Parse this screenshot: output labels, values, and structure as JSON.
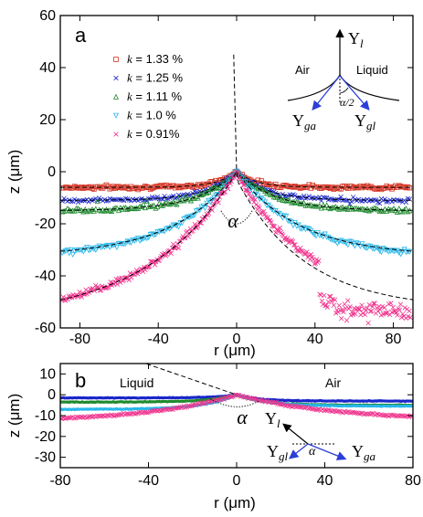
{
  "chart_data": [
    {
      "panel": "a",
      "type": "scatter",
      "xlabel": "r (μm)",
      "ylabel": "z (μm)",
      "xlim": [
        -90,
        90
      ],
      "ylim": [
        -60,
        60
      ],
      "xticks": [
        -80,
        -40,
        0,
        40,
        80
      ],
      "yticks": [
        -60,
        -40,
        -20,
        0,
        20,
        40,
        60
      ],
      "grid": false,
      "legend": "top-left",
      "series": [
        {
          "name": "k = 1.33 %",
          "color": "#d32f1f",
          "marker": "square",
          "depth": 6,
          "width": 10,
          "rising": 0,
          "x": [
            -88,
            -70,
            -50,
            -30,
            -15,
            -8,
            -3,
            0,
            3,
            8,
            15,
            30,
            50,
            70,
            88
          ],
          "y": [
            -6,
            -6,
            -6,
            -5.8,
            -5.5,
            -4.5,
            -2.5,
            0,
            -2.5,
            -4.5,
            -5.5,
            -5.8,
            -6,
            -6,
            -6
          ]
        },
        {
          "name": "k = 1.25 %",
          "color": "#1b27c9",
          "marker": "x",
          "depth": 11,
          "width": 15,
          "rising": 0,
          "x": [
            -88,
            -70,
            -50,
            -30,
            -15,
            -8,
            -3,
            0,
            3,
            8,
            15,
            30,
            50,
            70,
            88
          ],
          "y": [
            -11,
            -11,
            -11,
            -10.5,
            -9.5,
            -7.5,
            -4,
            0,
            -4,
            -7.5,
            -9.5,
            -10.5,
            -11,
            -11,
            -11
          ]
        },
        {
          "name": "k = 1.11 %",
          "color": "#1f8a2e",
          "marker": "triangle",
          "depth": 15,
          "width": 20,
          "rising": 0,
          "x": [
            -88,
            -70,
            -50,
            -30,
            -15,
            -8,
            -3,
            0,
            3,
            8,
            15,
            30,
            50,
            70,
            88
          ],
          "y": [
            -15,
            -15,
            -14.8,
            -14.2,
            -12.5,
            -9.5,
            -5,
            0,
            -5,
            -9.5,
            -12.5,
            -14.2,
            -14.8,
            -15,
            -15
          ]
        },
        {
          "name": "k = 1.0  %",
          "color": "#29b7ea",
          "marker": "triangle-down",
          "depth": 33,
          "width": 32,
          "rising": 0,
          "x": [
            -88,
            -70,
            -50,
            -30,
            -15,
            -8,
            -3,
            0,
            3,
            8,
            15,
            30,
            50,
            70,
            88
          ],
          "y": [
            -33,
            -33,
            -32.5,
            -29,
            -22,
            -15,
            -7,
            0,
            -7,
            -15,
            -22,
            -29,
            -32.5,
            -33,
            -33
          ]
        },
        {
          "name": "k = 0.91%",
          "color": "#f0338d",
          "marker": "x",
          "depth": 57,
          "width": 45,
          "rising": 1,
          "x": [
            -88,
            -70,
            -50,
            -30,
            -15,
            -8,
            -3,
            0,
            3,
            8,
            15,
            30,
            50,
            70,
            88
          ],
          "y": [
            -56,
            -53,
            -47,
            -37,
            -24,
            -15,
            -6,
            0,
            -6,
            -15,
            -24,
            -37,
            -47,
            -53,
            -56
          ]
        }
      ],
      "annotations": [
        "a",
        "α"
      ],
      "inset": {
        "left_label": "Air",
        "right_label": "Liquid",
        "half_angle_label": "α/2",
        "up_label": "Υ",
        "up_sub": "l",
        "left_arrow_label": "Υ",
        "left_sub": "ga",
        "right_arrow_label": "Υ",
        "right_sub": "gl"
      }
    },
    {
      "panel": "b",
      "type": "scatter",
      "xlabel": "r (μm)",
      "ylabel": "z (μm)",
      "xlim": [
        -80,
        80
      ],
      "ylim": [
        -35,
        15
      ],
      "xticks": [
        -80,
        -40,
        0,
        40,
        80
      ],
      "yticks": [
        -30,
        -20,
        -10,
        0,
        10
      ],
      "grid": false,
      "series": [
        {
          "name": "blue",
          "color": "#1b27c9",
          "left_depth": 1.5,
          "right_depth": 3,
          "width": 10
        },
        {
          "name": "green",
          "color": "#1f8a2e",
          "left_depth": 3.5,
          "right_depth": 5,
          "width": 12
        },
        {
          "name": "cyan",
          "color": "#29b7ea",
          "left_depth": 7,
          "right_depth": 5.5,
          "width": 14
        },
        {
          "name": "magenta",
          "color": "#f0338d",
          "left_depth": 13,
          "right_depth": 12.5,
          "width": 40
        }
      ],
      "annotations": [
        "b",
        "Liquid",
        "Air",
        "α"
      ],
      "inset": {
        "up_label": "Υ",
        "up_sub": "l",
        "left_label": "Υ",
        "left_sub": "gl",
        "right_label": "Υ",
        "right_sub": "ga",
        "angle_label": "α"
      }
    }
  ]
}
